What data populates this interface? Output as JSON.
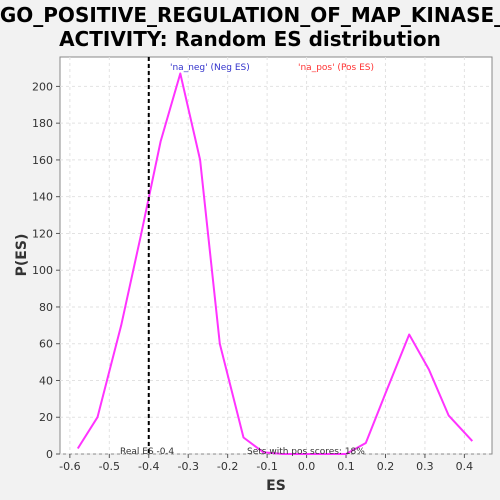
{
  "chart_data": {
    "type": "line",
    "title_lines": [
      "GO_POSITIVE_REGULATION_OF_MAP_KINASE_",
      "ACTIVITY: Random ES distribution"
    ],
    "xlabel": "ES",
    "ylabel": "P(ES)",
    "xlim": [
      -0.625,
      0.47
    ],
    "ylim": [
      0,
      216
    ],
    "xticks": [
      -0.6,
      -0.5,
      -0.4,
      -0.3,
      -0.2,
      -0.1,
      0.0,
      0.1,
      0.2,
      0.3,
      0.4
    ],
    "xtick_labels": [
      "-0.6",
      "-0.5",
      "-0.4",
      "-0.3",
      "-0.2",
      "-0.1",
      "0.0",
      "0.1",
      "0.2",
      "0.3",
      "0.4"
    ],
    "yticks": [
      0,
      20,
      40,
      60,
      80,
      100,
      120,
      140,
      160,
      180,
      200
    ],
    "ytick_labels": [
      "0",
      "20",
      "40",
      "60",
      "80",
      "100",
      "120",
      "140",
      "160",
      "180",
      "200"
    ],
    "grid": true,
    "series": [
      {
        "color": "#ff33ff",
        "x": [
          -0.58,
          -0.53,
          -0.47,
          -0.42,
          -0.37,
          -0.32,
          -0.27,
          -0.22,
          -0.16,
          -0.11,
          -0.06,
          -0.01,
          0.05,
          0.1,
          0.15,
          0.2,
          0.26,
          0.31,
          0.36,
          0.42
        ],
        "y": [
          3,
          20,
          70,
          119,
          170,
          207,
          160,
          60,
          9,
          1,
          0,
          0,
          0,
          0,
          6,
          33,
          65,
          46,
          21,
          7
        ]
      }
    ],
    "real_es": -0.4,
    "real_es_line_color": "#000000",
    "legend": {
      "placement": "top-center",
      "entries": [
        {
          "label": "'na_neg' (Neg ES)",
          "color": "#3333cc"
        },
        {
          "label": "'na_pos' (Pos ES)",
          "color": "#ff3333"
        }
      ]
    },
    "annotations": {
      "real_es": "Real ES -0.4",
      "pos_scores": "Sets with pos scores: 18%"
    }
  }
}
